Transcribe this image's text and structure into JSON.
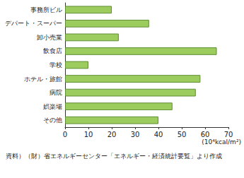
{
  "chart_data": {
    "type": "bar",
    "orientation": "horizontal",
    "categories": [
      "事務所ビル",
      "デパート・スーパー",
      "卸小売業",
      "飲食店",
      "学校",
      "ホテル・旅館",
      "病院",
      "娯楽場",
      "その他"
    ],
    "values": [
      20,
      36,
      23,
      65,
      10,
      58,
      56,
      46,
      40
    ],
    "color": "#9ccc5e",
    "xlabel": "(10⁴kcal/m²)",
    "note": "資料）（財）省エネルギーセンター「エネルギー・経済統計要覧」より作成",
    "xlim": [
      0,
      70
    ],
    "xticks": [
      0,
      10,
      20,
      30,
      40,
      50,
      60,
      70
    ],
    "grid": false
  }
}
